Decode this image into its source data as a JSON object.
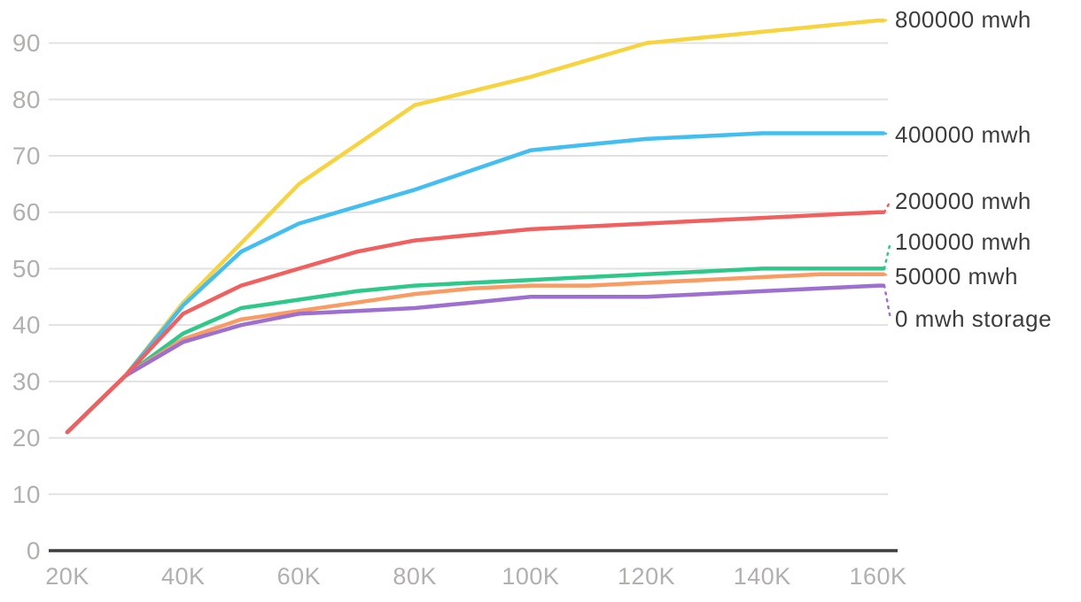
{
  "chart_data": {
    "type": "line",
    "title": "",
    "xlabel": "",
    "ylabel": "",
    "x": [
      20000,
      30000,
      40000,
      50000,
      60000,
      70000,
      80000,
      90000,
      100000,
      110000,
      120000,
      130000,
      140000,
      150000,
      160000
    ],
    "xlim": [
      20000,
      160000
    ],
    "ylim": [
      0,
      95
    ],
    "grid": true,
    "legend_position": "end-of-line-labels-right",
    "x_ticks": {
      "values": [
        20000,
        40000,
        60000,
        80000,
        100000,
        120000,
        140000,
        160000
      ],
      "labels": [
        "20K",
        "40K",
        "60K",
        "80K",
        "100K",
        "120K",
        "140K",
        "160K"
      ]
    },
    "y_ticks": {
      "values": [
        0,
        10,
        20,
        30,
        40,
        50,
        60,
        70,
        80,
        90
      ],
      "labels": [
        "0",
        "10",
        "20",
        "30",
        "40",
        "50",
        "60",
        "70",
        "80",
        "90"
      ]
    },
    "series": [
      {
        "name": "800000 mwh",
        "color": "#f7d33e",
        "values": [
          21,
          31,
          44,
          54.5,
          65,
          72,
          79,
          81.5,
          84,
          87,
          90,
          91,
          92,
          93,
          94
        ]
      },
      {
        "name": "400000 mwh",
        "color": "#42bef0",
        "values": [
          21,
          31,
          43.5,
          53,
          58,
          61,
          64,
          67.5,
          71,
          72,
          73,
          73.5,
          74,
          74,
          74
        ]
      },
      {
        "name": "200000 mwh",
        "color": "#f15f5f",
        "values": [
          21,
          31,
          42,
          47,
          50,
          53,
          55,
          56,
          57,
          57.5,
          58,
          58.5,
          59,
          59.5,
          60
        ]
      },
      {
        "name": "100000 mwh",
        "color": "#2ec98a",
        "values": [
          21,
          31,
          38.5,
          43,
          44.5,
          46,
          47,
          47.5,
          48,
          48.5,
          49,
          49.5,
          50,
          50,
          50
        ]
      },
      {
        "name": "50000 mwh",
        "color": "#f89c63",
        "values": [
          21,
          31,
          37.5,
          41,
          42.5,
          44,
          45.5,
          46.5,
          47,
          47,
          47.5,
          48,
          48.5,
          49,
          49
        ]
      },
      {
        "name": "0 mwh storage",
        "color": "#9d6fd0",
        "values": [
          21,
          31,
          37,
          40,
          42,
          42.5,
          43,
          44,
          45,
          45,
          45,
          45.5,
          46,
          46.5,
          47
        ]
      }
    ],
    "colors": {
      "grid": "#e2e2e2",
      "axis": "#3c3c3c",
      "tick_text": "#b2afaf",
      "label_text": "#3d3d3d",
      "background": "#ffffff"
    }
  }
}
